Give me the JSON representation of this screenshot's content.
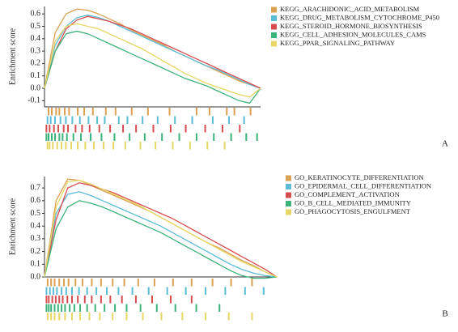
{
  "chart_data": [
    {
      "type": "line",
      "ylabel": "Enrichment score",
      "panel_label": "A",
      "ylim": [
        -0.15,
        0.66
      ],
      "yticks": [
        -0.1,
        {
          "value": 0,
          "label": "0.0"
        },
        0.1,
        0.2,
        0.3,
        0.4,
        0.5,
        0.6
      ],
      "series": [
        {
          "name": "KEGG_ARACHIDONIC_ACID_METABOLISM",
          "color": "#dba052",
          "values": [
            0,
            0.45,
            0.6,
            0.64,
            0.63,
            0.6,
            0.56,
            0.52,
            0.47,
            0.43,
            0.39,
            0.35,
            0.3,
            0.26,
            0.22,
            0.18,
            0.14,
            0.1,
            0.06,
            0.03,
            0
          ],
          "hits": [
            0.3,
            0.6,
            1,
            1.3,
            1.8,
            2.2,
            3,
            3.6,
            4.4,
            5.6,
            6.5,
            8,
            9.5,
            11.5,
            14,
            15.2,
            16.8,
            17.5,
            19
          ]
        },
        {
          "name": "KEGG_DRUG_METABOLISM_CYTOCHROME_P450",
          "color": "#5bbcd6",
          "values": [
            0,
            0.35,
            0.5,
            0.57,
            0.59,
            0.57,
            0.54,
            0.5,
            0.46,
            0.42,
            0.38,
            0.34,
            0.3,
            0.26,
            0.22,
            0.18,
            0.15,
            0.11,
            0.07,
            0.03,
            0
          ],
          "hits": [
            0.2,
            0.5,
            0.9,
            1.4,
            1.9,
            2.5,
            3.2,
            4,
            4.8,
            5.5,
            6.8,
            7.6,
            9,
            10.4,
            12,
            13.6,
            15.5,
            17,
            18.4
          ]
        },
        {
          "name": "KEGG_STEROID_HORMONE_BIOSYNTHESIS",
          "color": "#d64d4f",
          "values": [
            0,
            0.3,
            0.48,
            0.55,
            0.58,
            0.56,
            0.54,
            0.51,
            0.48,
            0.44,
            0.4,
            0.36,
            0.32,
            0.28,
            0.24,
            0.2,
            0.16,
            0.12,
            0.08,
            0.04,
            0
          ],
          "hits": [
            0.1,
            0.4,
            0.8,
            1.2,
            1.7,
            2.1,
            2.8,
            3.4,
            4.1,
            5,
            6,
            7.2,
            8.4,
            10,
            11.6,
            13,
            14.8,
            16.4,
            18
          ]
        },
        {
          "name": "KEGG_CELL_ADHESION_MOLECULES_CAMS",
          "color": "#3cb37a",
          "values": [
            0,
            0.3,
            0.44,
            0.46,
            0.44,
            0.4,
            0.36,
            0.32,
            0.28,
            0.24,
            0.2,
            0.16,
            0.12,
            0.08,
            0.05,
            0.02,
            -0.02,
            -0.06,
            -0.1,
            -0.12,
            0
          ],
          "hits": [
            0.1,
            0.3,
            0.6,
            0.9,
            1.3,
            1.6,
            2,
            2.6,
            3.3,
            4.2,
            5.2,
            6.4,
            7.8,
            9.2,
            10.8,
            12.4,
            14,
            15.6,
            17.2,
            18.6,
            19.6
          ]
        },
        {
          "name": "KEGG_PPAR_SIGNALING_PATHWAY",
          "color": "#e6d766",
          "values": [
            0,
            0.38,
            0.5,
            0.52,
            0.5,
            0.48,
            0.44,
            0.4,
            0.36,
            0.32,
            0.27,
            0.22,
            0.17,
            0.12,
            0.08,
            0.04,
            0.01,
            -0.02,
            -0.05,
            -0.07,
            0
          ],
          "hits": [
            0.2,
            0.4,
            0.7,
            1.1,
            1.5,
            1.9,
            2.4,
            3,
            3.7,
            4.5,
            5.4,
            6.3,
            7.4,
            8.8,
            10.2,
            11.8,
            13.4,
            15,
            16.6
          ]
        }
      ]
    },
    {
      "type": "line",
      "ylabel": "Enrichment score",
      "panel_label": "B",
      "ylim": [
        0,
        0.79
      ],
      "yticks": [
        {
          "value": 0,
          "label": "0.0"
        },
        0.1,
        0.2,
        0.3,
        0.4,
        0.5,
        0.6,
        0.7
      ],
      "series": [
        {
          "name": "GO_KERATINOCYTE_DIFFERENTIATION",
          "color": "#dba052",
          "values": [
            0,
            0.6,
            0.77,
            0.76,
            0.72,
            0.68,
            0.64,
            0.6,
            0.56,
            0.52,
            0.47,
            0.42,
            0.37,
            0.32,
            0.27,
            0.23,
            0.18,
            0.13,
            0.09,
            0.04,
            0
          ],
          "hits": [
            0.2,
            0.5,
            0.8,
            1.2,
            1.6,
            2,
            2.6,
            3.2,
            4,
            4.8,
            5.8,
            6.8,
            8,
            9.4,
            11,
            12.6,
            14.4,
            16,
            17.8
          ]
        },
        {
          "name": "GO_EPIDERMAL_CELL_DIFFERENTIATION",
          "color": "#5bbcd6",
          "values": [
            0,
            0.5,
            0.65,
            0.67,
            0.64,
            0.6,
            0.56,
            0.52,
            0.48,
            0.44,
            0.4,
            0.35,
            0.3,
            0.25,
            0.2,
            0.15,
            0.1,
            0.06,
            0.03,
            0.01,
            0
          ],
          "hits": [
            0.1,
            0.4,
            0.7,
            1,
            1.4,
            1.8,
            2.3,
            2.9,
            3.6,
            4.4,
            5.3,
            6.3,
            7.5,
            8.9,
            10.5,
            12.1,
            13.8,
            15.5,
            17.2,
            18.8
          ]
        },
        {
          "name": "GO_COMPLEMENT_ACTIVATION",
          "color": "#d64d4f",
          "values": [
            0,
            0.45,
            0.7,
            0.74,
            0.72,
            0.69,
            0.66,
            0.62,
            0.58,
            0.54,
            0.5,
            0.46,
            0.41,
            0.36,
            0.31,
            0.26,
            0.21,
            0.16,
            0.11,
            0.06,
            0
          ],
          "hits": [
            0.1,
            0.3,
            0.6,
            0.9,
            1.2,
            1.5,
            1.9,
            2.3,
            2.8,
            3.4,
            4,
            4.8,
            5.6,
            6.6,
            7.8,
            9.2,
            10.8,
            12.6
          ]
        },
        {
          "name": "GO_B_CELL_MEDIATED_IMMUNITY",
          "color": "#3cb37a",
          "values": [
            0,
            0.38,
            0.55,
            0.6,
            0.58,
            0.55,
            0.51,
            0.47,
            0.43,
            0.39,
            0.35,
            0.3,
            0.25,
            0.2,
            0.15,
            0.1,
            0.05,
            0.01,
            -0.01,
            -0.01,
            0
          ],
          "hits": [
            0.1,
            0.3,
            0.5,
            0.8,
            1.1,
            1.4,
            1.7,
            2.1,
            2.5,
            3,
            3.6,
            4.3,
            5.1,
            6,
            7,
            8.2,
            9.6,
            11.2,
            13,
            15
          ]
        },
        {
          "name": "GO_PHAGOCYTOSIS_ENGULFMENT",
          "color": "#e6d766",
          "values": [
            0,
            0.55,
            0.75,
            0.76,
            0.73,
            0.69,
            0.65,
            0.61,
            0.57,
            0.52,
            0.47,
            0.42,
            0.37,
            0.32,
            0.27,
            0.22,
            0.17,
            0.12,
            0.08,
            0.04,
            0
          ],
          "hits": [
            0.2,
            0.5,
            0.8,
            1.2,
            1.7,
            2.3,
            3,
            3.8,
            4.7,
            5.8,
            7,
            8.4,
            10,
            11.8,
            13.8,
            15.8,
            17.8
          ]
        }
      ]
    }
  ]
}
